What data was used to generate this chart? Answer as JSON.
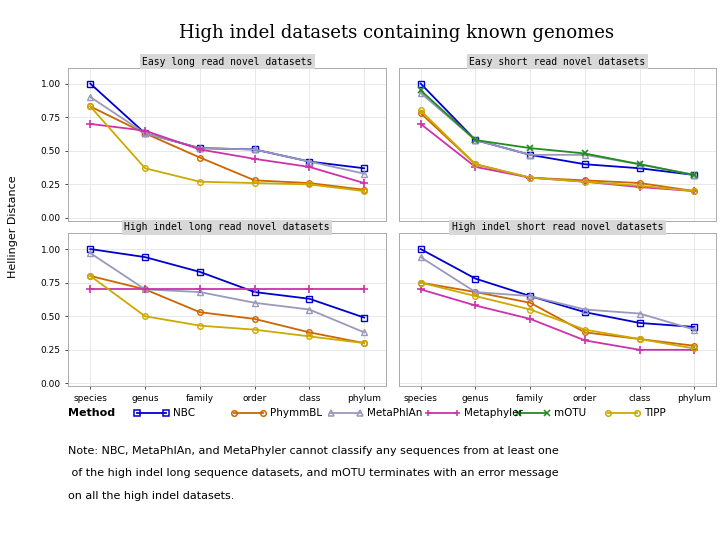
{
  "title": "High indel datasets containing known genomes",
  "ylabel": "Hellinger Distance",
  "x_labels": [
    "species",
    "genus",
    "family",
    "order",
    "class",
    "phylum"
  ],
  "subplots": [
    {
      "title": "Easy long read novel datasets",
      "NBC": [
        1.0,
        0.63,
        0.52,
        0.51,
        0.42,
        0.37
      ],
      "PhymmBL": [
        0.83,
        0.63,
        0.45,
        0.28,
        0.26,
        0.21
      ],
      "MetaPhlAn": [
        0.9,
        0.63,
        0.52,
        0.51,
        0.42,
        0.33
      ],
      "Metaphyler": [
        0.7,
        0.65,
        0.51,
        0.44,
        0.38,
        0.26
      ],
      "mOTU": [
        null,
        null,
        null,
        null,
        null,
        null
      ],
      "TIPP": [
        0.83,
        0.37,
        0.27,
        0.26,
        0.25,
        0.2
      ]
    },
    {
      "title": "Easy short read novel datasets",
      "NBC": [
        1.0,
        0.58,
        0.47,
        0.4,
        0.37,
        0.32
      ],
      "PhymmBL": [
        0.78,
        0.4,
        0.3,
        0.28,
        0.26,
        0.2
      ],
      "MetaPhlAn": [
        0.93,
        0.58,
        0.47,
        0.47,
        0.4,
        0.32
      ],
      "Metaphyler": [
        0.7,
        0.38,
        0.3,
        0.27,
        0.23,
        0.2
      ],
      "mOTU": [
        0.95,
        0.58,
        0.52,
        0.48,
        0.4,
        0.32
      ],
      "TIPP": [
        0.8,
        0.4,
        0.3,
        0.27,
        0.24,
        0.2
      ]
    },
    {
      "title": "High indel long read novel datasets",
      "NBC": [
        1.0,
        0.94,
        0.83,
        0.68,
        0.63,
        0.49
      ],
      "PhymmBL": [
        0.8,
        0.7,
        0.53,
        0.48,
        0.38,
        0.3
      ],
      "MetaPhlAn": [
        0.97,
        0.7,
        0.68,
        0.6,
        0.55,
        0.38
      ],
      "Metaphyler": [
        0.7,
        0.7,
        0.7,
        0.7,
        0.7,
        0.7
      ],
      "mOTU": [
        null,
        null,
        null,
        null,
        null,
        null
      ],
      "TIPP": [
        0.8,
        0.5,
        0.43,
        0.4,
        0.35,
        0.3
      ]
    },
    {
      "title": "High indel short read novel datasets",
      "NBC": [
        1.0,
        0.78,
        0.65,
        0.53,
        0.45,
        0.42
      ],
      "PhymmBL": [
        0.75,
        0.68,
        0.6,
        0.38,
        0.33,
        0.28
      ],
      "MetaPhlAn": [
        0.94,
        0.68,
        0.65,
        0.55,
        0.52,
        0.4
      ],
      "Metaphyler": [
        0.7,
        0.58,
        0.48,
        0.32,
        0.25,
        0.25
      ],
      "mOTU": [
        null,
        null,
        null,
        null,
        null,
        null
      ],
      "TIPP": [
        0.75,
        0.65,
        0.55,
        0.4,
        0.33,
        0.26
      ]
    }
  ],
  "methods": [
    "NBC",
    "PhymmBL",
    "MetaPhlAn",
    "Metaphyler",
    "mOTU",
    "TIPP"
  ],
  "colors": {
    "NBC": "#0000cc",
    "PhymmBL": "#cc6600",
    "MetaPhlAn": "#9999bb",
    "Metaphyler": "#cc33aa",
    "mOTU": "#228b22",
    "TIPP": "#ccaa00"
  },
  "note_line1": "Note: NBC, MetaPhlAn, and MetaPhyler cannot classify any sequences from at least one",
  "note_line2": " of the high indel long sequence datasets, and mOTU terminates with an error message",
  "note_line3": "on all the high indel datasets.",
  "subplot_title_bg": "#d8d8d8",
  "plot_bg": "#ffffff",
  "grid_color": "#e8e8e8"
}
